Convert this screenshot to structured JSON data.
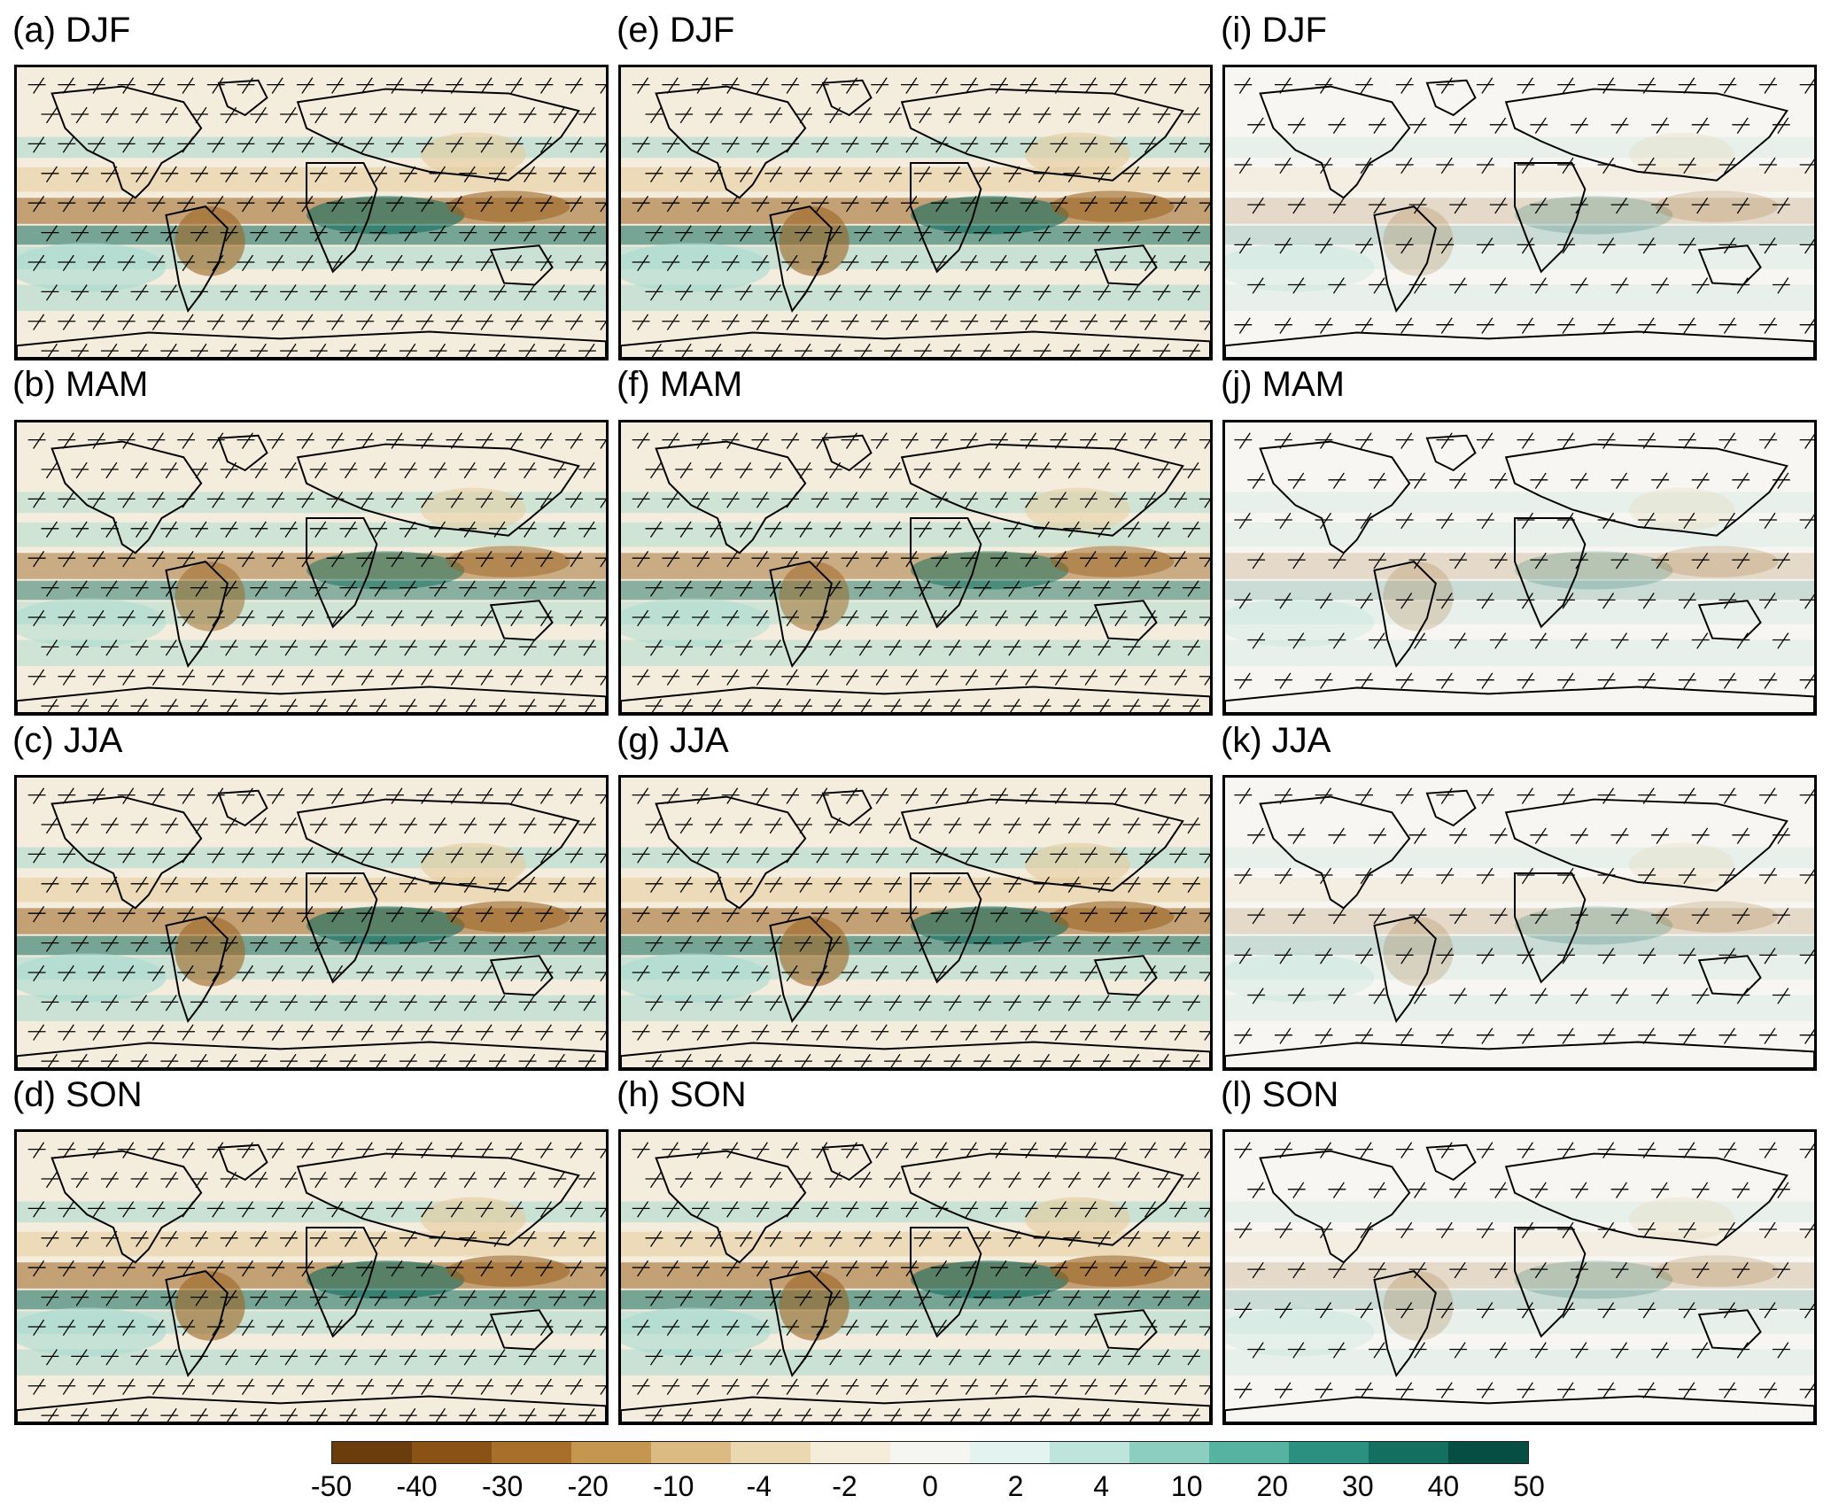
{
  "panels": [
    {
      "id": "a",
      "label": "(a) DJF",
      "season": "DJF",
      "column": 0,
      "row": 0
    },
    {
      "id": "b",
      "label": "(b) MAM",
      "season": "MAM",
      "column": 0,
      "row": 1
    },
    {
      "id": "c",
      "label": "(c) JJA",
      "season": "JJA",
      "column": 0,
      "row": 2
    },
    {
      "id": "d",
      "label": "(d) SON",
      "season": "SON",
      "column": 0,
      "row": 3
    },
    {
      "id": "e",
      "label": "(e) DJF",
      "season": "DJF",
      "column": 1,
      "row": 0
    },
    {
      "id": "f",
      "label": "(f) MAM",
      "season": "MAM",
      "column": 1,
      "row": 1
    },
    {
      "id": "g",
      "label": "(g) JJA",
      "season": "JJA",
      "column": 1,
      "row": 2
    },
    {
      "id": "h",
      "label": "(h) SON",
      "season": "SON",
      "column": 1,
      "row": 3
    },
    {
      "id": "i",
      "label": "(i) DJF",
      "season": "DJF",
      "column": 2,
      "row": 0
    },
    {
      "id": "j",
      "label": "(j) MAM",
      "season": "MAM",
      "column": 2,
      "row": 1
    },
    {
      "id": "k",
      "label": "(k) JJA",
      "season": "JJA",
      "column": 2,
      "row": 2
    },
    {
      "id": "l",
      "label": "(l) SON",
      "season": "SON",
      "column": 2,
      "row": 3
    }
  ],
  "colorbar": {
    "tick_labels": [
      "-50",
      "-40",
      "-30",
      "-20",
      "-10",
      "-4",
      "-2",
      "0",
      "2",
      "4",
      "10",
      "20",
      "30",
      "40",
      "50"
    ],
    "colors": [
      "#6b3d0c",
      "#8a5214",
      "#a86f2a",
      "#c5964f",
      "#dbbb82",
      "#ecd8b0",
      "#f6ecda",
      "#f5f5f2",
      "#e3f3ef",
      "#bfe4dc",
      "#8ccfc1",
      "#56b3a2",
      "#2b9080",
      "#137061",
      "#064e44"
    ]
  },
  "styles": {
    "brown_strong": "#9b6421",
    "brown_light": "#e5cc9d",
    "teal_strong": "#0f6b5d",
    "teal_light": "#a7dbd0",
    "background": "#f4ecdc",
    "hatch": "#000000"
  }
}
